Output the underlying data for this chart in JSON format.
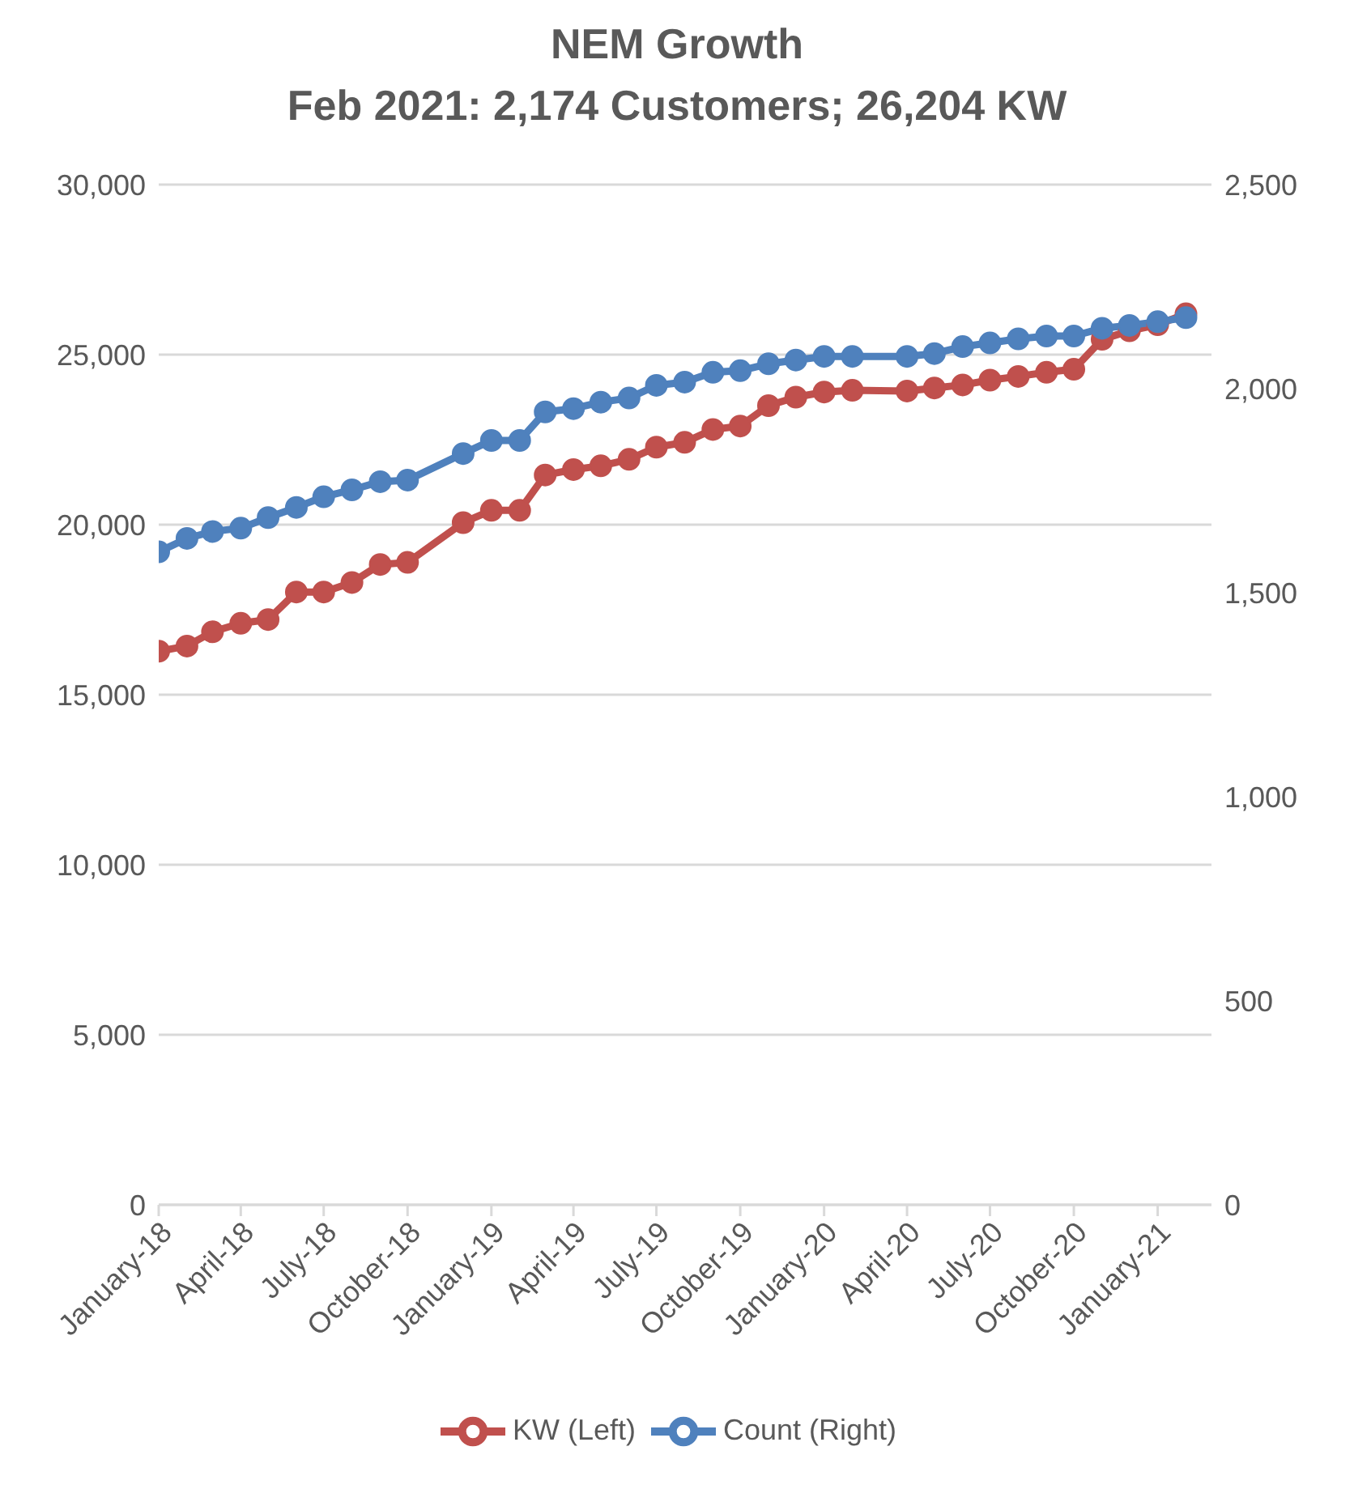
{
  "chart_data": {
    "type": "line",
    "title": "NEM Growth",
    "subtitle": "Feb 2021: 2,174 Customers; 26,204 KW",
    "x": [
      "2018-01",
      "2018-02",
      "2018-03",
      "2018-04",
      "2018-05",
      "2018-06",
      "2018-07",
      "2018-08",
      "2018-09",
      "2018-10",
      "2018-12",
      "2019-01",
      "2019-02",
      "2019-03",
      "2019-04",
      "2019-05",
      "2019-06",
      "2019-07",
      "2019-08",
      "2019-09",
      "2019-10",
      "2019-11",
      "2019-12",
      "2020-01",
      "2020-02",
      "2020-04",
      "2020-05",
      "2020-06",
      "2020-07",
      "2020-08",
      "2020-09",
      "2020-10",
      "2020-11",
      "2020-12",
      "2021-01",
      "2021-02"
    ],
    "series": [
      {
        "name": "KW (Left)",
        "color": "#c0504d",
        "values": [
          16280,
          16430,
          16850,
          17100,
          17210,
          18020,
          18020,
          18300,
          18830,
          18890,
          20060,
          20420,
          20420,
          21460,
          21620,
          21730,
          21920,
          22280,
          22420,
          22800,
          22900,
          23500,
          23750,
          23900,
          23950,
          23930,
          24020,
          24110,
          24250,
          24360,
          24480,
          24570,
          25450,
          25700,
          25880,
          26200
        ]
      },
      {
        "name": "Count (Right)",
        "color": "#4f81bd",
        "axis": "y2",
        "values": [
          1600,
          1633,
          1650,
          1658,
          1684,
          1709,
          1735,
          1752,
          1772,
          1776,
          1841,
          1873,
          1873,
          1943,
          1951,
          1967,
          1977,
          2008,
          2016,
          2040,
          2044,
          2061,
          2070,
          2079,
          2079,
          2079,
          2086,
          2103,
          2112,
          2122,
          2129,
          2129,
          2148,
          2155,
          2164,
          2174
        ]
      }
    ],
    "xlim": [
      "2018-01",
      "2021-03"
    ],
    "xticks": [
      {
        "value": "2018-01",
        "label": "January-18"
      },
      {
        "value": "2018-04",
        "label": "April-18"
      },
      {
        "value": "2018-07",
        "label": "July-18"
      },
      {
        "value": "2018-10",
        "label": "October-18"
      },
      {
        "value": "2019-01",
        "label": "January-19"
      },
      {
        "value": "2019-04",
        "label": "April-19"
      },
      {
        "value": "2019-07",
        "label": "July-19"
      },
      {
        "value": "2019-10",
        "label": "October-19"
      },
      {
        "value": "2020-01",
        "label": "January-20"
      },
      {
        "value": "2020-04",
        "label": "April-20"
      },
      {
        "value": "2020-07",
        "label": "July-20"
      },
      {
        "value": "2020-10",
        "label": "October-20"
      },
      {
        "value": "2021-01",
        "label": "January-21"
      }
    ],
    "ylim": [
      0,
      30000
    ],
    "yticks": [
      0,
      {
        "value": 5000,
        "label": "5,000"
      },
      {
        "value": 10000,
        "label": "10,000"
      },
      {
        "value": 15000,
        "label": "15,000"
      },
      {
        "value": 20000,
        "label": "20,000"
      },
      {
        "value": 25000,
        "label": "25,000"
      },
      {
        "value": 30000,
        "label": "30,000"
      }
    ],
    "y2lim": [
      0,
      2500
    ],
    "y2ticks": [
      0,
      500,
      {
        "value": 1000,
        "label": "1,000"
      },
      {
        "value": 1500,
        "label": "1,500"
      },
      {
        "value": 2000,
        "label": "2,000"
      },
      {
        "value": 2500,
        "label": "2,500"
      }
    ],
    "grid": "y",
    "legend": "bottom",
    "marker": "circle",
    "line_style": "solid"
  }
}
